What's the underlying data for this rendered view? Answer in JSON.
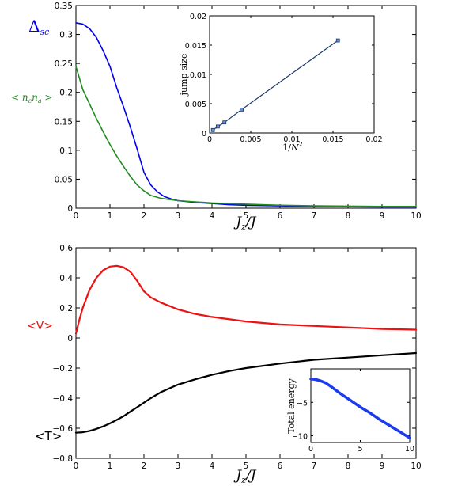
{
  "chart_data": [
    {
      "id": "top-main",
      "type": "line",
      "xlabel": "J_z / J",
      "ylabel": "",
      "xlim": [
        0,
        10
      ],
      "ylim": [
        0,
        0.35
      ],
      "xticks": [
        0,
        1,
        2,
        3,
        4,
        5,
        6,
        7,
        8,
        9,
        10
      ],
      "yticks": [
        0,
        0.05,
        0.1,
        0.15,
        0.2,
        0.25,
        0.3,
        0.35
      ],
      "ytick_labels": [
        "0",
        "0.05",
        "0.1",
        "0.15",
        "0.2",
        "0.25",
        "0.3",
        "0.35"
      ],
      "series": [
        {
          "name": "Δ_sc",
          "color": "#0000ee",
          "x": [
            0,
            0.2,
            0.4,
            0.6,
            0.8,
            1.0,
            1.2,
            1.4,
            1.6,
            1.8,
            2.0,
            2.2,
            2.4,
            2.6,
            2.8,
            3.0,
            3.5,
            4.0,
            4.5,
            5.0,
            6.0,
            7.0,
            8.0,
            9.0,
            10.0
          ],
          "y": [
            0.32,
            0.318,
            0.31,
            0.295,
            0.272,
            0.245,
            0.208,
            0.175,
            0.14,
            0.102,
            0.062,
            0.04,
            0.028,
            0.02,
            0.016,
            0.013,
            0.01,
            0.008,
            0.006,
            0.005,
            0.004,
            0.003,
            0.0025,
            0.002,
            0.002
          ]
        },
        {
          "name": "< n_c n_a >",
          "color": "#228b22",
          "x": [
            0,
            0.1,
            0.2,
            0.4,
            0.6,
            0.8,
            1.0,
            1.2,
            1.4,
            1.6,
            1.8,
            2.0,
            2.2,
            2.5,
            3.0,
            3.5,
            4.0,
            5.0,
            6.0,
            7.0,
            8.0,
            9.0,
            10.0
          ],
          "y": [
            0.245,
            0.225,
            0.205,
            0.18,
            0.155,
            0.132,
            0.11,
            0.09,
            0.072,
            0.055,
            0.04,
            0.03,
            0.022,
            0.017,
            0.013,
            0.011,
            0.009,
            0.007,
            0.005,
            0.004,
            0.0035,
            0.003,
            0.003
          ]
        }
      ]
    },
    {
      "id": "top-inset",
      "type": "line",
      "xlabel": "1/N²",
      "ylabel": "jump size",
      "xlim": [
        0,
        0.02
      ],
      "ylim": [
        0,
        0.02
      ],
      "xticks": [
        0,
        0.005,
        0.01,
        0.015,
        0.02
      ],
      "xtick_labels": [
        "0",
        "0.005",
        "0.01",
        "0.015",
        "0.02"
      ],
      "yticks": [
        0,
        0.005,
        0.01,
        0.015,
        0.02
      ],
      "ytick_labels": [
        "0",
        "0.005",
        "0.01",
        "0.015",
        "0.02"
      ],
      "series": [
        {
          "name": "",
          "color": "#1a3a6b",
          "marker": "square",
          "x": [
            0.0004,
            0.001,
            0.0018,
            0.0039,
            0.0156
          ],
          "y": [
            0.0005,
            0.0011,
            0.0018,
            0.004,
            0.0158
          ]
        }
      ]
    },
    {
      "id": "bottom-main",
      "type": "line",
      "xlabel": "J_z / J",
      "ylabel": "",
      "xlim": [
        0,
        10
      ],
      "ylim": [
        -0.8,
        0.6
      ],
      "xticks": [
        0,
        1,
        2,
        3,
        4,
        5,
        6,
        7,
        8,
        9,
        10
      ],
      "yticks": [
        -0.8,
        -0.6,
        -0.4,
        -0.2,
        0,
        0.2,
        0.4,
        0.6
      ],
      "ytick_labels": [
        "−0.8",
        "−0.6",
        "−0.4",
        "−0.2",
        "0",
        "0.2",
        "0.4",
        "0.6"
      ],
      "series": [
        {
          "name": "<V>",
          "color": "#ee1111",
          "x": [
            0,
            0.1,
            0.2,
            0.4,
            0.6,
            0.8,
            1.0,
            1.2,
            1.4,
            1.6,
            1.8,
            2.0,
            2.2,
            2.5,
            3.0,
            3.5,
            4.0,
            5.0,
            6.0,
            7.0,
            8.0,
            9.0,
            10.0
          ],
          "y": [
            0.03,
            0.12,
            0.2,
            0.32,
            0.4,
            0.45,
            0.475,
            0.48,
            0.47,
            0.44,
            0.38,
            0.31,
            0.27,
            0.235,
            0.19,
            0.16,
            0.14,
            0.11,
            0.09,
            0.08,
            0.07,
            0.06,
            0.055
          ]
        },
        {
          "name": "<T>",
          "color": "#000000",
          "x": [
            0,
            0.2,
            0.4,
            0.6,
            0.8,
            1.0,
            1.2,
            1.4,
            1.6,
            1.8,
            2.0,
            2.2,
            2.5,
            3.0,
            3.5,
            4.0,
            4.5,
            5.0,
            6.0,
            7.0,
            8.0,
            9.0,
            10.0
          ],
          "y": [
            -0.63,
            -0.627,
            -0.618,
            -0.605,
            -0.588,
            -0.568,
            -0.545,
            -0.52,
            -0.49,
            -0.46,
            -0.43,
            -0.4,
            -0.36,
            -0.31,
            -0.275,
            -0.245,
            -0.22,
            -0.2,
            -0.17,
            -0.145,
            -0.13,
            -0.115,
            -0.1
          ]
        }
      ]
    },
    {
      "id": "bottom-inset",
      "type": "line",
      "xlabel": "",
      "ylabel": "Total energy",
      "xlim": [
        0,
        10
      ],
      "ylim": [
        -11,
        0
      ],
      "xticks": [
        0,
        5,
        10
      ],
      "xtick_labels": [
        "0",
        "5",
        "10"
      ],
      "yticks": [
        -10,
        -5
      ],
      "ytick_labels": [
        "−10",
        "−5"
      ],
      "series": [
        {
          "name": "",
          "color": "#1a3aee",
          "x": [
            0,
            0.5,
            1,
            1.5,
            2,
            3,
            4,
            5,
            6,
            7,
            8,
            9,
            10
          ],
          "y": [
            -1.5,
            -1.6,
            -1.8,
            -2.1,
            -2.6,
            -3.7,
            -4.7,
            -5.7,
            -6.6,
            -7.6,
            -8.5,
            -9.4,
            -10.3
          ]
        }
      ]
    }
  ]
}
